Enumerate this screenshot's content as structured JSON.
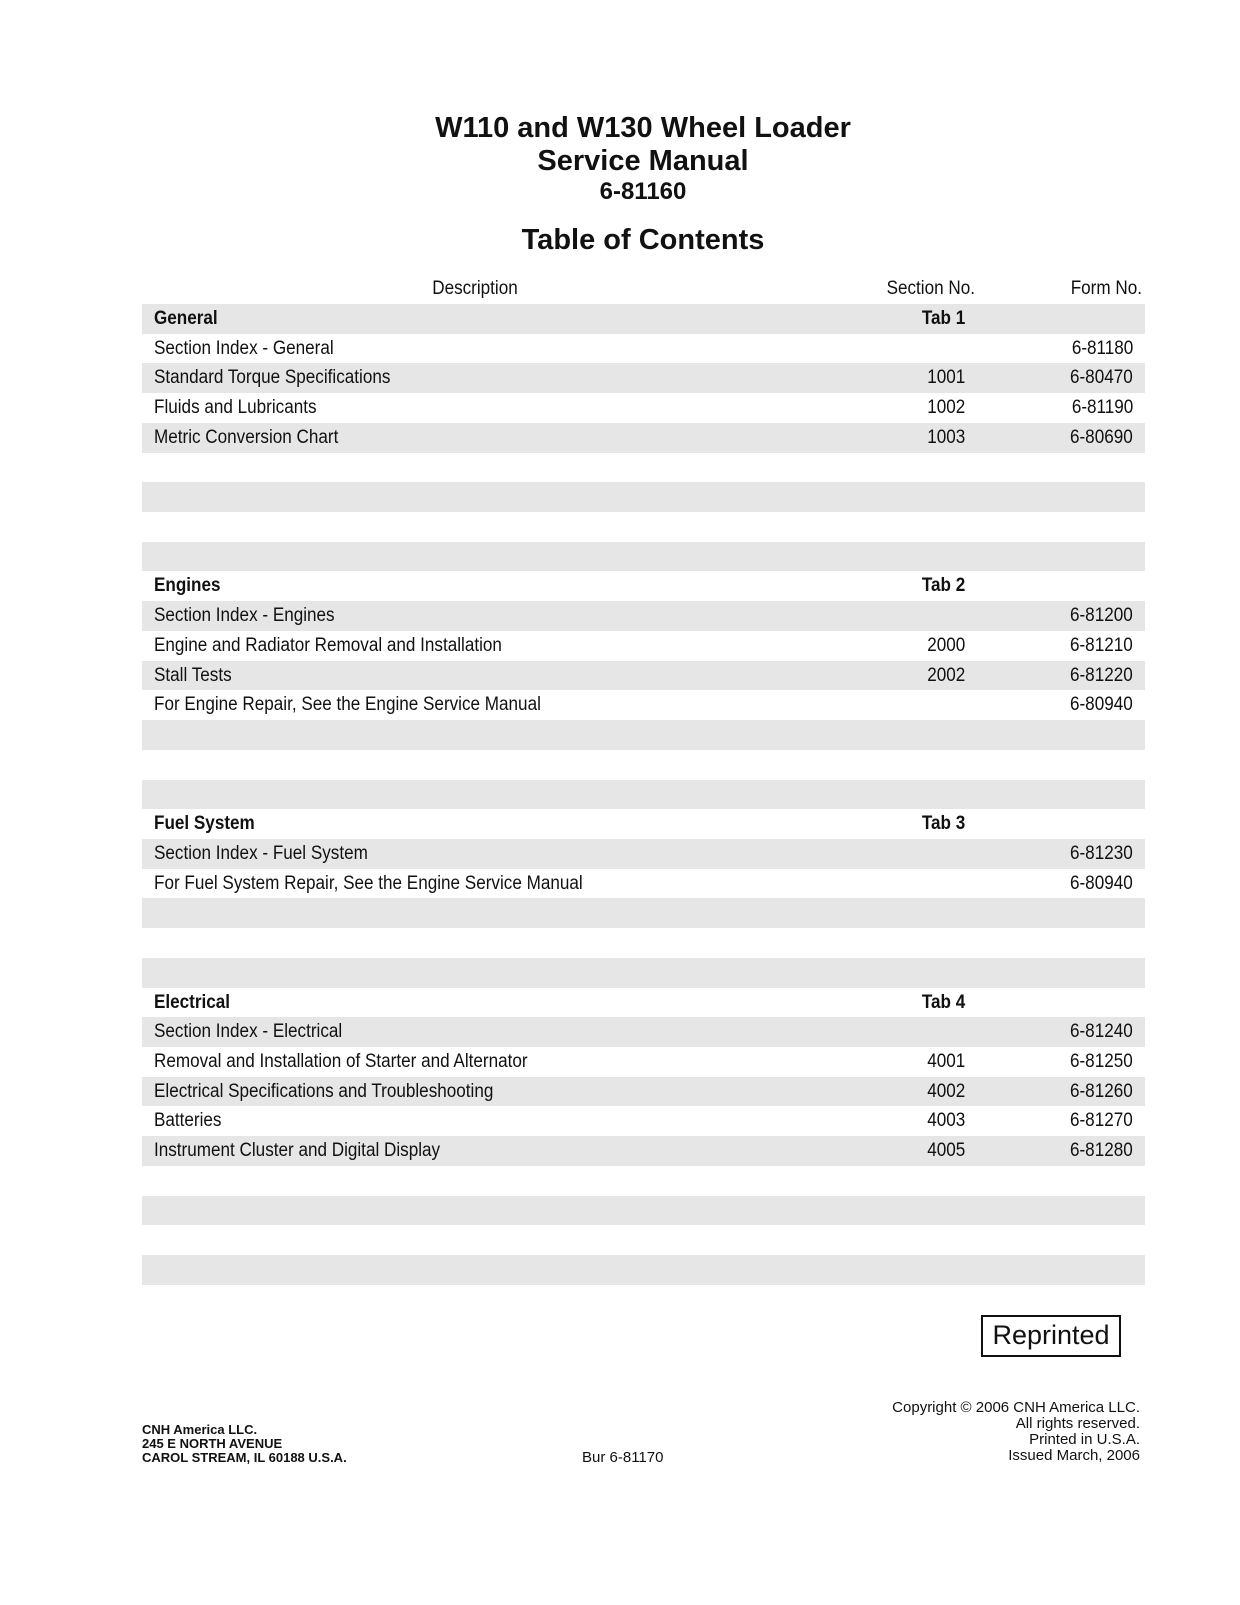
{
  "title": {
    "line1": "W110 and W130 Wheel Loader",
    "line2": "Service Manual",
    "form_number": "6-81160",
    "heading": "Table of Contents"
  },
  "columns": {
    "description": "Description",
    "section": "Section No.",
    "form": "Form No."
  },
  "rows": [
    {
      "type": "head",
      "desc": "General",
      "sec": "Tab 1",
      "form": ""
    },
    {
      "desc": "Section Index - General",
      "sec": "",
      "form": "6-81180"
    },
    {
      "desc": "Standard Torque Specifications",
      "sec": "1001",
      "form": "6-80470"
    },
    {
      "desc": "Fluids and Lubricants",
      "sec": "1002",
      "form": "6-81190"
    },
    {
      "desc": "Metric Conversion Chart",
      "sec": "1003",
      "form": "6-80690"
    },
    {
      "desc": "",
      "sec": "",
      "form": ""
    },
    {
      "desc": "",
      "sec": "",
      "form": ""
    },
    {
      "desc": "",
      "sec": "",
      "form": ""
    },
    {
      "desc": "",
      "sec": "",
      "form": ""
    },
    {
      "type": "head",
      "desc": "Engines",
      "sec": "Tab 2",
      "form": ""
    },
    {
      "desc": "Section Index - Engines",
      "sec": "",
      "form": "6-81200"
    },
    {
      "desc": "Engine and Radiator Removal and Installation",
      "sec": "2000",
      "form": "6-81210"
    },
    {
      "desc": "Stall Tests",
      "sec": "2002",
      "form": "6-81220"
    },
    {
      "desc": "For Engine Repair, See the Engine Service Manual",
      "sec": "",
      "form": "6-80940"
    },
    {
      "desc": "",
      "sec": "",
      "form": ""
    },
    {
      "desc": "",
      "sec": "",
      "form": ""
    },
    {
      "desc": "",
      "sec": "",
      "form": ""
    },
    {
      "type": "head",
      "desc": "Fuel System",
      "sec": "Tab 3",
      "form": ""
    },
    {
      "desc": "Section Index - Fuel System",
      "sec": "",
      "form": "6-81230"
    },
    {
      "desc": "For Fuel System Repair, See the Engine Service Manual",
      "sec": "",
      "form": "6-80940"
    },
    {
      "desc": "",
      "sec": "",
      "form": ""
    },
    {
      "desc": "",
      "sec": "",
      "form": ""
    },
    {
      "desc": "",
      "sec": "",
      "form": ""
    },
    {
      "type": "head",
      "desc": "Electrical",
      "sec": "Tab 4",
      "form": ""
    },
    {
      "desc": "Section Index - Electrical",
      "sec": "",
      "form": "6-81240"
    },
    {
      "desc": "Removal and Installation of Starter and Alternator",
      "sec": "4001",
      "form": "6-81250"
    },
    {
      "desc": "Electrical Specifications and Troubleshooting",
      "sec": "4002",
      "form": "6-81260"
    },
    {
      "desc": "Batteries",
      "sec": "4003",
      "form": "6-81270"
    },
    {
      "desc": "Instrument Cluster and Digital Display",
      "sec": "4005",
      "form": "6-81280"
    },
    {
      "desc": "",
      "sec": "",
      "form": ""
    },
    {
      "desc": "",
      "sec": "",
      "form": ""
    },
    {
      "desc": "",
      "sec": "",
      "form": ""
    },
    {
      "desc": "",
      "sec": "",
      "form": ""
    }
  ],
  "stamp": "Reprinted",
  "footer": {
    "address": [
      "CNH America LLC.",
      "245 E NORTH AVENUE",
      "CAROL STREAM, IL 60188 U.S.A."
    ],
    "bur": "Bur 6-81170",
    "copyright": [
      "Copyright © 2006 CNH America LLC.",
      "All rights reserved.",
      "Printed in U.S.A.",
      "Issued March, 2006"
    ]
  },
  "colors": {
    "row_shade": "#e6e6e6",
    "text": "#111111"
  }
}
